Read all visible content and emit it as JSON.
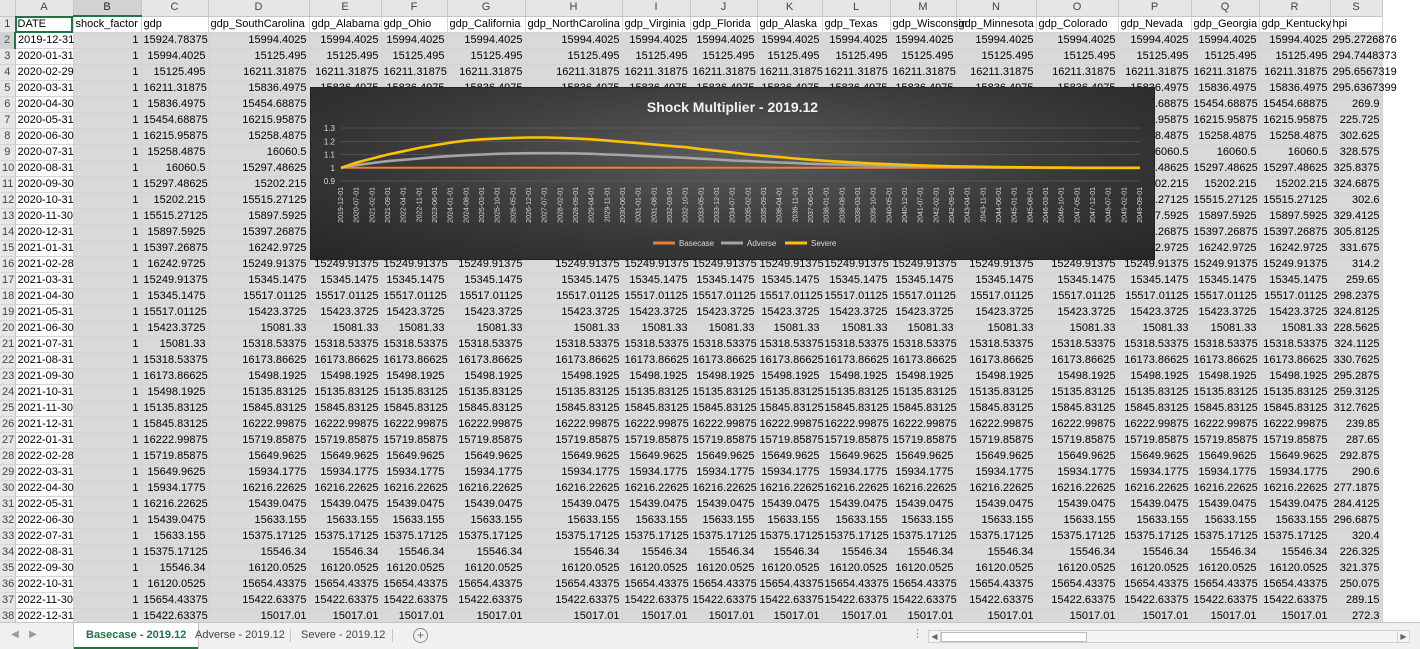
{
  "spreadsheet": {
    "column_letters": [
      "A",
      "B",
      "C",
      "D",
      "E",
      "F",
      "G",
      "H",
      "I",
      "J",
      "K",
      "L",
      "M",
      "N",
      "O",
      "P",
      "Q",
      "R",
      "S"
    ],
    "selected_column": "B",
    "headers": [
      "DATE",
      "shock_factor",
      "gdp",
      "gdp_SouthCarolina",
      "gdp_Alabama",
      "gdp_Ohio",
      "gdp_California",
      "gdp_NorthCarolina",
      "gdp_Virginia",
      "gdp_Florida",
      "gdp_Alaska",
      "gdp_Texas",
      "gdp_Wisconsin",
      "gdp_Minnesota",
      "gdp_Colorado",
      "gdp_Nevada",
      "gdp_Georgia",
      "gdp_Kentucky",
      "hpi"
    ],
    "rows": [
      {
        "n": "2",
        "date": "2019-12-31",
        "shock": "1",
        "gdp": "15924.78375",
        "state": "15994.4025",
        "hpi": "295.2726876"
      },
      {
        "n": "3",
        "date": "2020-01-31",
        "shock": "1",
        "gdp": "15994.4025",
        "state": "15125.495",
        "hpi": "294.7448373"
      },
      {
        "n": "4",
        "date": "2020-02-29",
        "shock": "1",
        "gdp": "15125.495",
        "state": "16211.31875",
        "hpi": "295.6567319"
      },
      {
        "n": "5",
        "date": "2020-03-31",
        "shock": "1",
        "gdp": "16211.31875",
        "state": "15836.4975",
        "hpi": "295.6367399"
      },
      {
        "n": "6",
        "date": "2020-04-30",
        "shock": "1",
        "gdp": "15836.4975",
        "state": "15454.68875",
        "hpi": "269.9"
      },
      {
        "n": "7",
        "date": "2020-05-31",
        "shock": "1",
        "gdp": "15454.68875",
        "state": "16215.95875",
        "hpi": "225.725"
      },
      {
        "n": "8",
        "date": "2020-06-30",
        "shock": "1",
        "gdp": "16215.95875",
        "state": "15258.4875",
        "hpi": "302.625"
      },
      {
        "n": "9",
        "date": "2020-07-31",
        "shock": "1",
        "gdp": "15258.4875",
        "state": "16060.5",
        "hpi": "328.575"
      },
      {
        "n": "10",
        "date": "2020-08-31",
        "shock": "1",
        "gdp": "16060.5",
        "state": "15297.48625",
        "hpi": "325.8375"
      },
      {
        "n": "11",
        "date": "2020-09-30",
        "shock": "1",
        "gdp": "15297.48625",
        "state": "15202.215",
        "hpi": "324.6875"
      },
      {
        "n": "12",
        "date": "2020-10-31",
        "shock": "1",
        "gdp": "15202.215",
        "state": "15515.27125",
        "hpi": "302.6"
      },
      {
        "n": "13",
        "date": "2020-11-30",
        "shock": "1",
        "gdp": "15515.27125",
        "state": "15897.5925",
        "hpi": "329.4125"
      },
      {
        "n": "14",
        "date": "2020-12-31",
        "shock": "1",
        "gdp": "15897.5925",
        "state": "15397.26875",
        "hpi": "305.8125"
      },
      {
        "n": "15",
        "date": "2021-01-31",
        "shock": "1",
        "gdp": "15397.26875",
        "state": "16242.9725",
        "hpi": "331.675"
      },
      {
        "n": "16",
        "date": "2021-02-28",
        "shock": "1",
        "gdp": "16242.9725",
        "state": "15249.91375",
        "hpi": "314.2"
      },
      {
        "n": "17",
        "date": "2021-03-31",
        "shock": "1",
        "gdp": "15249.91375",
        "state": "15345.1475",
        "hpi": "259.65"
      },
      {
        "n": "18",
        "date": "2021-04-30",
        "shock": "1",
        "gdp": "15345.1475",
        "state": "15517.01125",
        "hpi": "298.2375"
      },
      {
        "n": "19",
        "date": "2021-05-31",
        "shock": "1",
        "gdp": "15517.01125",
        "state": "15423.3725",
        "hpi": "324.8125"
      },
      {
        "n": "20",
        "date": "2021-06-30",
        "shock": "1",
        "gdp": "15423.3725",
        "state": "15081.33",
        "hpi": "228.5625"
      },
      {
        "n": "21",
        "date": "2021-07-31",
        "shock": "1",
        "gdp": "15081.33",
        "state": "15318.53375",
        "hpi": "324.1125"
      },
      {
        "n": "22",
        "date": "2021-08-31",
        "shock": "1",
        "gdp": "15318.53375",
        "state": "16173.86625",
        "hpi": "330.7625"
      },
      {
        "n": "23",
        "date": "2021-09-30",
        "shock": "1",
        "gdp": "16173.86625",
        "state": "15498.1925",
        "hpi": "295.2875"
      },
      {
        "n": "24",
        "date": "2021-10-31",
        "shock": "1",
        "gdp": "15498.1925",
        "state": "15135.83125",
        "hpi": "259.3125"
      },
      {
        "n": "25",
        "date": "2021-11-30",
        "shock": "1",
        "gdp": "15135.83125",
        "state": "15845.83125",
        "hpi": "312.7625"
      },
      {
        "n": "26",
        "date": "2021-12-31",
        "shock": "1",
        "gdp": "15845.83125",
        "state": "16222.99875",
        "hpi": "239.85"
      },
      {
        "n": "27",
        "date": "2022-01-31",
        "shock": "1",
        "gdp": "16222.99875",
        "state": "15719.85875",
        "hpi": "287.65"
      },
      {
        "n": "28",
        "date": "2022-02-28",
        "shock": "1",
        "gdp": "15719.85875",
        "state": "15649.9625",
        "hpi": "292.875"
      },
      {
        "n": "29",
        "date": "2022-03-31",
        "shock": "1",
        "gdp": "15649.9625",
        "state": "15934.1775",
        "hpi": "290.6"
      },
      {
        "n": "30",
        "date": "2022-04-30",
        "shock": "1",
        "gdp": "15934.1775",
        "state": "16216.22625",
        "hpi": "277.1875"
      },
      {
        "n": "31",
        "date": "2022-05-31",
        "shock": "1",
        "gdp": "16216.22625",
        "state": "15439.0475",
        "hpi": "284.4125"
      },
      {
        "n": "32",
        "date": "2022-06-30",
        "shock": "1",
        "gdp": "15439.0475",
        "state": "15633.155",
        "hpi": "296.6875"
      },
      {
        "n": "33",
        "date": "2022-07-31",
        "shock": "1",
        "gdp": "15633.155",
        "state": "15375.17125",
        "hpi": "320.4"
      },
      {
        "n": "34",
        "date": "2022-08-31",
        "shock": "1",
        "gdp": "15375.17125",
        "state": "15546.34",
        "hpi": "226.325"
      },
      {
        "n": "35",
        "date": "2022-09-30",
        "shock": "1",
        "gdp": "15546.34",
        "state": "16120.0525",
        "hpi": "321.375"
      },
      {
        "n": "36",
        "date": "2022-10-31",
        "shock": "1",
        "gdp": "16120.0525",
        "state": "15654.43375",
        "hpi": "250.075"
      },
      {
        "n": "37",
        "date": "2022-11-30",
        "shock": "1",
        "gdp": "15654.43375",
        "state": "15422.63375",
        "hpi": "289.15"
      },
      {
        "n": "38",
        "date": "2022-12-31",
        "shock": "1",
        "gdp": "15422.63375",
        "state": "15017.01",
        "hpi": "272.3"
      }
    ]
  },
  "chart_data": {
    "type": "line",
    "title": "Shock Multiplier - 2019.12",
    "ylim": [
      0.9,
      1.3
    ],
    "yticks": [
      "0.9",
      "1",
      "1.1",
      "1.2",
      "1.3"
    ],
    "xlabels": [
      "2019-12-01",
      "2020-07-01",
      "2021-02-01",
      "2021-09-01",
      "2022-04-01",
      "2022-11-01",
      "2023-06-01",
      "2024-01-01",
      "2024-08-01",
      "2025-03-01",
      "2025-10-01",
      "2026-05-01",
      "2026-12-01",
      "2027-07-01",
      "2028-02-01",
      "2028-09-01",
      "2029-04-01",
      "2029-11-01",
      "2030-06-01",
      "2031-01-01",
      "2031-08-01",
      "2032-03-01",
      "2032-10-01",
      "2033-05-01",
      "2033-12-01",
      "2034-07-01",
      "2035-02-01",
      "2035-09-01",
      "2036-04-01",
      "2036-11-01",
      "2037-06-01",
      "2038-01-01",
      "2038-08-01",
      "2039-03-01",
      "2039-10-01",
      "2040-05-01",
      "2040-12-01",
      "2041-07-01",
      "2042-02-01",
      "2042-09-01",
      "2043-04-01",
      "2043-11-01",
      "2044-06-01",
      "2045-01-01",
      "2045-08-01",
      "2046-03-01",
      "2046-10-01",
      "2047-05-01",
      "2047-12-01",
      "2048-07-01",
      "2049-02-01",
      "2049-09-01"
    ],
    "grid": true,
    "legend": "bottom",
    "series": [
      {
        "name": "Basecase",
        "color": "#ed7d31",
        "values": [
          1,
          1,
          1,
          1,
          1,
          1,
          1,
          1,
          1,
          1,
          1,
          1,
          1,
          1,
          1,
          1,
          1,
          1,
          1,
          1,
          1,
          1,
          1,
          1,
          1,
          1,
          1,
          1,
          1,
          1,
          1,
          1,
          1,
          1,
          1,
          1,
          1,
          1,
          1,
          1,
          1,
          1,
          1,
          1,
          1,
          1,
          1,
          1,
          1,
          1,
          1,
          1
        ]
      },
      {
        "name": "Adverse",
        "color": "#a5a5a5",
        "values": [
          1.0,
          1.02,
          1.035,
          1.05,
          1.06,
          1.07,
          1.08,
          1.088,
          1.095,
          1.1,
          1.105,
          1.108,
          1.11,
          1.11,
          1.11,
          1.108,
          1.105,
          1.1,
          1.096,
          1.09,
          1.085,
          1.08,
          1.075,
          1.068,
          1.062,
          1.055,
          1.05,
          1.045,
          1.04,
          1.035,
          1.03,
          1.027,
          1.024,
          1.02,
          1.017,
          1.014,
          1.012,
          1.01,
          1.008,
          1.006,
          1.005,
          1.004,
          1.003,
          1.002,
          1.001,
          1.0,
          1.0,
          1.0,
          1.0,
          1.0,
          1.0,
          1.0
        ]
      },
      {
        "name": "Severe",
        "color": "#ffc000",
        "values": [
          1.0,
          1.04,
          1.07,
          1.1,
          1.125,
          1.15,
          1.17,
          1.19,
          1.205,
          1.215,
          1.22,
          1.225,
          1.228,
          1.228,
          1.225,
          1.22,
          1.215,
          1.205,
          1.195,
          1.185,
          1.175,
          1.165,
          1.155,
          1.14,
          1.128,
          1.115,
          1.1,
          1.09,
          1.08,
          1.07,
          1.06,
          1.052,
          1.045,
          1.038,
          1.032,
          1.027,
          1.022,
          1.018,
          1.014,
          1.011,
          1.009,
          1.007,
          1.005,
          1.004,
          1.003,
          1.002,
          1.001,
          1.0,
          1.0,
          1.0,
          1.0,
          1.0
        ]
      }
    ]
  },
  "sheet_tabs": [
    {
      "label": "Basecase - 2019.12",
      "active": true
    },
    {
      "label": "Adverse - 2019.12",
      "active": false
    },
    {
      "label": "Severe - 2019.12",
      "active": false
    }
  ],
  "tabbar": {
    "add_label": "+",
    "dots": "⋮"
  }
}
